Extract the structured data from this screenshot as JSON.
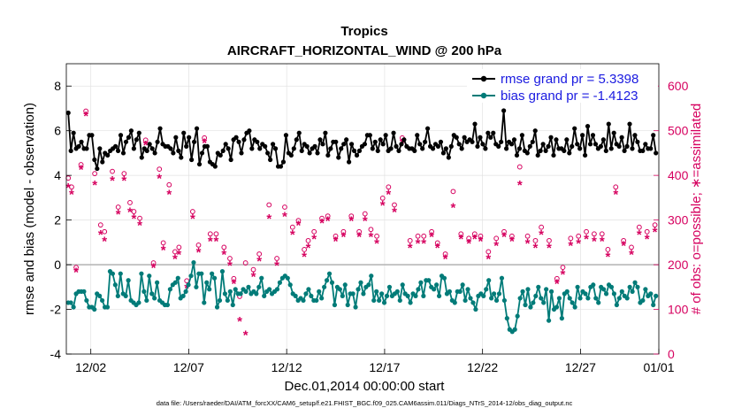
{
  "chart_data": {
    "type": "line",
    "title": "Tropics",
    "subtitle": "AIRCRAFT_HORIZONTAL_WIND @ 200 hPa",
    "xlabel": "Dec.01,2014 00:00:00 start",
    "ylabel": "rmse and bias (model - observation)",
    "ylabel_right": "# of obs: o=possible; ∗=assimilated",
    "xlim": [
      0.75,
      31.0
    ],
    "ylim": [
      -4,
      9
    ],
    "ylim_right": [
      0,
      650
    ],
    "yticks": [
      -4,
      -2,
      0,
      2,
      4,
      6,
      8
    ],
    "yticks_right": [
      0,
      100,
      200,
      300,
      400,
      500,
      600
    ],
    "xticks": [
      {
        "x": 2,
        "label": "12/02"
      },
      {
        "x": 7,
        "label": "12/07"
      },
      {
        "x": 12,
        "label": "12/12"
      },
      {
        "x": 17,
        "label": "12/17"
      },
      {
        "x": 22,
        "label": "12/22"
      },
      {
        "x": 27,
        "label": "12/27"
      },
      {
        "x": 31,
        "label": "01/01"
      }
    ],
    "grid": true,
    "legend_position": "top-right",
    "series": [
      {
        "name": "rmse grand pr = 5.3398",
        "color": "#000000",
        "axis": "left",
        "values": [
          6.8,
          5.1,
          5.9,
          5.2,
          5.3,
          5.5,
          5.2,
          5.2,
          5.8,
          5.8,
          4.7,
          4.3,
          5.2,
          4.6,
          5.0,
          4.9,
          5.1,
          5.2,
          5.3,
          5.1,
          5.8,
          5.0,
          5.5,
          5.7,
          6.0,
          5.2,
          5.6,
          5.9,
          4.8,
          5.2,
          5.1,
          5.4,
          5.2,
          5.0,
          5.5,
          6.1,
          5.4,
          5.3,
          5.3,
          5.2,
          5.0,
          5.7,
          5.1,
          4.8,
          5.9,
          5.3,
          5.7,
          4.7,
          5.5,
          6.1,
          4.5,
          5.0,
          5.3,
          5.3,
          4.6,
          4.5,
          4.4,
          5.0,
          4.9,
          5.1,
          5.4,
          5.2,
          4.7,
          5.6,
          5.7,
          5.5,
          5.0,
          5.6,
          5.9,
          6.0,
          5.2,
          5.6,
          5.5,
          5.2,
          5.4,
          5.3,
          5.0,
          4.7,
          5.4,
          5.2,
          4.4,
          4.4,
          4.6,
          5.8,
          5.0,
          4.9,
          5.2,
          5.6,
          5.9,
          5.1,
          5.4,
          5.3,
          5.0,
          5.2,
          5.3,
          5.0,
          5.6,
          5.4,
          5.9,
          4.9,
          5.2,
          5.5,
          5.5,
          4.8,
          5.2,
          5.4,
          5.6,
          4.6,
          5.4,
          5.1,
          4.9,
          5.1,
          5.3,
          5.4,
          5.8,
          5.8,
          5.2,
          5.5,
          5.1,
          5.6,
          5.4,
          5.8,
          5.1,
          5.2,
          5.9,
          5.3,
          5.1,
          5.4,
          5.6,
          5.3,
          5.2,
          5.2,
          5.1,
          5.8,
          5.4,
          5.2,
          5.5,
          6.1,
          5.3,
          5.2,
          5.4,
          5.3,
          5.5,
          5.0,
          5.2,
          4.8,
          5.3,
          5.8,
          5.7,
          5.4,
          5.2,
          5.7,
          5.5,
          5.6,
          5.5,
          6.3,
          5.3,
          5.7,
          5.4,
          5.2,
          5.9,
          5.7,
          5.9,
          5.4,
          5.3,
          5.5,
          6.9,
          5.2,
          5.5,
          5.4,
          5.6,
          4.9,
          5.2,
          5.8,
          5.1,
          5.0,
          5.3,
          5.5,
          6.0,
          4.9,
          5.1,
          5.4,
          5.1,
          5.3,
          5.7,
          4.9,
          5.6,
          5.2,
          5.2,
          5.1,
          5.6,
          5.0,
          5.3,
          6.1,
          5.4,
          5.2,
          5.8,
          4.9,
          6.2,
          5.4,
          5.8,
          5.4,
          5.2,
          5.3,
          5.6,
          5.1,
          6.3,
          5.2,
          5.9,
          5.4,
          5.3,
          5.7,
          5.1,
          5.3,
          6.3,
          5.2,
          5.8,
          5.5,
          5.1,
          5.1,
          5.4,
          5.2,
          5.2,
          5.8,
          5.0
        ]
      },
      {
        "name": "bias grand pr = -1.4123",
        "color": "#007b78",
        "axis": "left",
        "values": [
          -1.7,
          -1.7,
          -1.9,
          -1.3,
          -1.2,
          -1.2,
          -1.2,
          -1.6,
          -1.9,
          -1.9,
          -2.0,
          -1.3,
          -1.4,
          -1.6,
          -1.9,
          -1.9,
          -0.3,
          -0.4,
          -0.9,
          -1.4,
          -0.4,
          -1.3,
          -1.4,
          -0.7,
          -1.6,
          -1.7,
          -1.8,
          -1.7,
          -0.4,
          -1.2,
          -1.6,
          -0.5,
          -1.3,
          -1.5,
          -0.8,
          -1.6,
          -1.7,
          -1.8,
          -1.8,
          -1.1,
          -0.9,
          -0.8,
          -0.6,
          -1.5,
          -1.4,
          -1.2,
          -0.9,
          -0.5,
          0.1,
          -1.0,
          -0.4,
          -0.4,
          -1.7,
          -0.8,
          -1.1,
          -0.4,
          -0.6,
          -1.9,
          -1.6,
          -0.3,
          -1.3,
          -1.6,
          -1.2,
          -1.8,
          -1.1,
          -1.3,
          -1.3,
          -1.1,
          -1.2,
          -1.0,
          -1.3,
          -1.2,
          -1.3,
          -1.0,
          -0.6,
          -1.4,
          -1.2,
          -1.1,
          -1.3,
          -1.2,
          -1.1,
          -0.8,
          -0.6,
          -0.5,
          -0.6,
          -0.9,
          -1.3,
          -1.4,
          -1.6,
          -1.5,
          -1.6,
          -1.3,
          -1.1,
          -1.4,
          -1.6,
          -1.6,
          -1.2,
          -1.5,
          -1.0,
          -0.7,
          -0.4,
          -0.8,
          -1.8,
          -1.0,
          -1.1,
          -1.4,
          -0.9,
          -1.8,
          -1.3,
          -1.3,
          -1.9,
          -1.1,
          -0.8,
          -1.3,
          -1.0,
          -0.9,
          -0.5,
          -1.6,
          -1.2,
          -1.6,
          -1.3,
          -1.7,
          -1.4,
          -1.0,
          -1.4,
          -1.3,
          -1.2,
          -1.6,
          -0.9,
          -1.3,
          -1.4,
          -1.7,
          -1.3,
          -1.4,
          -1.1,
          -0.8,
          -1.4,
          -0.7,
          -0.7,
          -1.0,
          -1.1,
          -0.9,
          -1.4,
          -0.5,
          -0.6,
          -1.3,
          -1.2,
          -1.6,
          -1.7,
          -1.2,
          -1.2,
          -0.9,
          -1.6,
          -1.1,
          -1.5,
          -1.7,
          -2.0,
          -1.4,
          -1.3,
          -1.4,
          -1.1,
          -0.7,
          -1.5,
          -1.3,
          -1.6,
          -1.3,
          -0.6,
          -1.6,
          -2.4,
          -2.9,
          -3.0,
          -2.9,
          -2.3,
          -1.5,
          -1.2,
          -1.8,
          -1.1,
          -1.9,
          -1.7,
          -1.4,
          -1.0,
          -1.5,
          -1.7,
          -1.1,
          -2.5,
          -1.2,
          -2.0,
          -1.9,
          -1.5,
          -2.4,
          -1.3,
          -1.2,
          -1.5,
          -1.7,
          -1.9,
          -1.0,
          -1.5,
          -1.2,
          -1.3,
          -1.5,
          -1.0,
          -0.9,
          -1.5,
          -1.7,
          -1.0,
          -1.1,
          -1.3,
          -0.9,
          -1.0,
          -1.3,
          -1.8,
          -1.5,
          -1.2,
          -1.4,
          -1.5,
          -1.0,
          -1.2,
          -0.8,
          -1.0,
          -1.7,
          -1.6,
          -1.1,
          -1.4,
          -1.3,
          -1.8,
          -1.4
        ]
      },
      {
        "name": "obs possible",
        "color": "#d6005f",
        "axis": "right",
        "marker": "o",
        "x": [
          0.85,
          1.02,
          1.25,
          1.5,
          1.75,
          2.2,
          2.5,
          2.7,
          3.1,
          3.4,
          3.7,
          4.0,
          4.2,
          4.5,
          4.8,
          5.2,
          5.5,
          5.7,
          6.0,
          6.3,
          6.5,
          6.9,
          7.2,
          7.5,
          7.8,
          8.1,
          8.4,
          8.8,
          9.1,
          9.3,
          9.6,
          9.9,
          10.3,
          10.6,
          11.1,
          11.5,
          11.9,
          12.3,
          12.6,
          12.9,
          13.1,
          13.4,
          13.8,
          14.1,
          14.5,
          14.9,
          15.3,
          15.7,
          16.0,
          16.3,
          16.6,
          16.9,
          17.2,
          17.5,
          17.9,
          18.3,
          18.7,
          19.0,
          19.4,
          19.7,
          20.1,
          20.5,
          20.9,
          21.3,
          21.6,
          21.9,
          22.3,
          22.7,
          23.1,
          23.5,
          23.9,
          24.3,
          24.7,
          25.0,
          25.4,
          25.8,
          26.1,
          26.5,
          26.9,
          27.3,
          27.7,
          28.1,
          28.4,
          28.8,
          29.2,
          29.6,
          30.0,
          30.4,
          30.8
        ],
        "values": [
          390,
          370,
          190,
          420,
          540,
          400,
          285,
          270,
          405,
          325,
          400,
          335,
          315,
          300,
          475,
          200,
          410,
          245,
          375,
          225,
          235,
          160,
          315,
          240,
          480,
          265,
          265,
          235,
          210,
          165,
          125,
          200,
          185,
          220,
          330,
          210,
          325,
          280,
          295,
          230,
          250,
          270,
          300,
          305,
          260,
          270,
          305,
          270,
          310,
          275,
          260,
          345,
          370,
          330,
          480,
          250,
          260,
          260,
          270,
          245,
          220,
          360,
          265,
          255,
          265,
          260,
          225,
          255,
          270,
          260,
          415,
          260,
          250,
          280,
          250,
          165,
          190,
          255,
          260,
          270,
          265,
          265,
          230,
          370,
          250,
          235,
          280,
          270,
          285
        ]
      },
      {
        "name": "obs assimilated",
        "color": "#d6005f",
        "axis": "right",
        "marker": "*",
        "x": [
          0.85,
          1.02,
          1.25,
          1.5,
          1.75,
          2.2,
          2.5,
          2.7,
          3.1,
          3.4,
          3.7,
          4.0,
          4.2,
          4.5,
          4.8,
          5.2,
          5.5,
          5.7,
          6.0,
          6.3,
          6.5,
          6.9,
          7.2,
          7.5,
          7.8,
          8.1,
          8.4,
          8.8,
          9.1,
          9.3,
          9.6,
          9.9,
          10.3,
          10.6,
          11.1,
          11.5,
          11.9,
          12.3,
          12.6,
          12.9,
          13.1,
          13.4,
          13.8,
          14.1,
          14.5,
          14.9,
          15.3,
          15.7,
          16.0,
          16.3,
          16.6,
          16.9,
          17.2,
          17.5,
          17.9,
          18.3,
          18.7,
          19.0,
          19.4,
          19.7,
          20.1,
          20.5,
          20.9,
          21.3,
          21.6,
          21.9,
          22.3,
          22.7,
          23.1,
          23.5,
          23.9,
          24.3,
          24.7,
          25.0,
          25.4,
          25.8,
          26.1,
          26.5,
          26.9,
          27.3,
          27.7,
          28.1,
          28.4,
          28.8,
          29.2,
          29.6,
          30.0,
          30.4,
          30.8
        ],
        "values": [
          375,
          360,
          185,
          415,
          535,
          380,
          270,
          255,
          390,
          315,
          390,
          320,
          305,
          290,
          470,
          195,
          395,
          235,
          360,
          215,
          225,
          150,
          305,
          230,
          475,
          255,
          255,
          225,
          200,
          160,
          75,
          45,
          175,
          210,
          305,
          200,
          310,
          270,
          290,
          220,
          240,
          260,
          295,
          300,
          255,
          265,
          300,
          265,
          300,
          265,
          250,
          335,
          360,
          320,
          475,
          240,
          250,
          250,
          265,
          240,
          215,
          330,
          260,
          250,
          260,
          255,
          215,
          245,
          265,
          255,
          380,
          250,
          240,
          270,
          240,
          160,
          180,
          245,
          250,
          260,
          255,
          255,
          220,
          360,
          245,
          225,
          270,
          260,
          275
        ]
      }
    ],
    "annotations": {
      "legend": [
        "rmse grand pr = 5.3398",
        "bias grand pr = -1.4123"
      ],
      "footer": "data file: /Users/raeder/DAI/ATM_forcXX/CAM6_setup/f.e21.FHIST_BGC.f09_025.CAM6assim.011/Diags_NTrS_2014-12/obs_diag_output.nc"
    }
  }
}
